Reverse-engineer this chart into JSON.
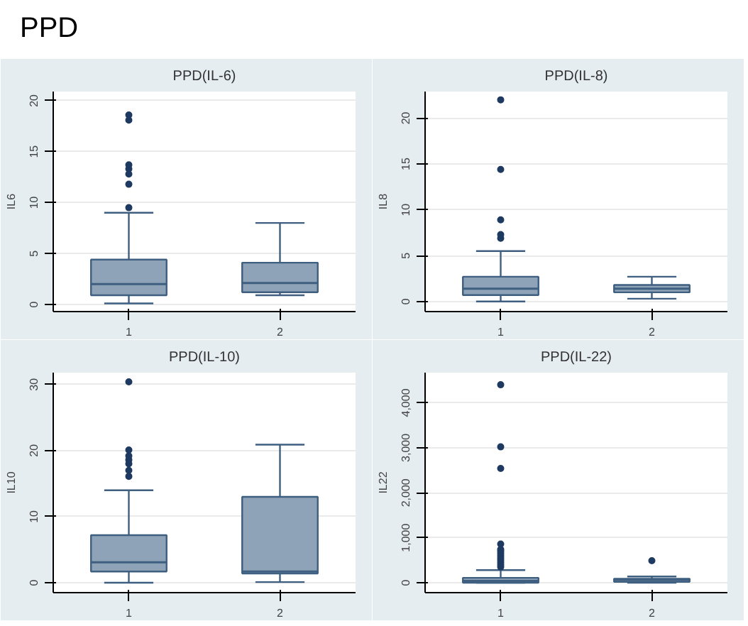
{
  "chart_data": [
    {
      "type": "box",
      "title": "PPD(IL-6)",
      "ylabel": "IL6",
      "annotations": [
        "PPD"
      ],
      "categories": [
        "1",
        "2"
      ],
      "ylim": [
        -0.7,
        20.9
      ],
      "yticks": [
        0,
        5,
        10,
        15,
        20
      ],
      "grid": "y",
      "color": "#8ea3b8",
      "boxes": [
        {
          "low": 0.1,
          "q1": 0.9,
          "median": 2.0,
          "q3": 4.4,
          "high": 9.0,
          "outliers": [
            9.5,
            11.8,
            12.8,
            13.3,
            13.7,
            18.1,
            18.6
          ]
        },
        {
          "low": 0.9,
          "q1": 1.2,
          "median": 2.1,
          "q3": 4.1,
          "high": 8.0
        }
      ]
    },
    {
      "type": "box",
      "title": "PPD(IL-8)",
      "ylabel": "IL8",
      "categories": [
        "1",
        "2"
      ],
      "ylim": [
        -1.1,
        22.9
      ],
      "yticks": [
        0,
        5,
        10,
        15,
        20
      ],
      "grid": "y",
      "color": "#8ea3b8",
      "boxes": [
        {
          "low": 0,
          "q1": 0.7,
          "median": 1.4,
          "q3": 2.7,
          "high": 5.5,
          "outliers": [
            6.9,
            7.3,
            8.9,
            14.4,
            22.0
          ]
        },
        {
          "low": 0.3,
          "q1": 1.0,
          "median": 1.4,
          "q3": 1.8,
          "high": 2.7
        }
      ]
    },
    {
      "type": "box",
      "title": "PPD(IL-10)",
      "ylabel": "IL10",
      "categories": [
        "1",
        "2"
      ],
      "ylim": [
        -1.5,
        31.8
      ],
      "yticks": [
        0,
        10,
        20,
        30
      ],
      "grid": "y",
      "color": "#8ea3b8",
      "boxes": [
        {
          "low": 0,
          "q1": 1.7,
          "median": 3.1,
          "q3": 7.2,
          "high": 14.0,
          "outliers": [
            16.1,
            17.0,
            18.0,
            18.6,
            19.2,
            20.1,
            30.4
          ]
        },
        {
          "low": 0.1,
          "q1": 1.4,
          "median": 1.7,
          "q3": 13.0,
          "high": 20.9
        }
      ]
    },
    {
      "type": "box",
      "title": "PPD(IL-22)",
      "ylabel": "IL22",
      "categories": [
        "1",
        "2"
      ],
      "ylim": [
        -220,
        4670
      ],
      "yticks": [
        0,
        {
          "value": 1000,
          "label": "1,000"
        },
        {
          "value": 2000,
          "label": "2,000"
        },
        {
          "value": 3000,
          "label": "3,000"
        },
        {
          "value": 4000,
          "label": "4,000"
        }
      ],
      "grid": "y",
      "color": "#8ea3b8",
      "boxes": [
        {
          "low": 0,
          "q1": 0,
          "median": 40,
          "q3": 110,
          "high": 280,
          "outliers": [
            350,
            400,
            450,
            500,
            550,
            600,
            650,
            700,
            740,
            860,
            2540,
            3020,
            4400
          ]
        },
        {
          "low": 0,
          "q1": 20,
          "median": 65,
          "q3": 90,
          "high": 140,
          "outliers": [
            490
          ]
        }
      ]
    }
  ]
}
